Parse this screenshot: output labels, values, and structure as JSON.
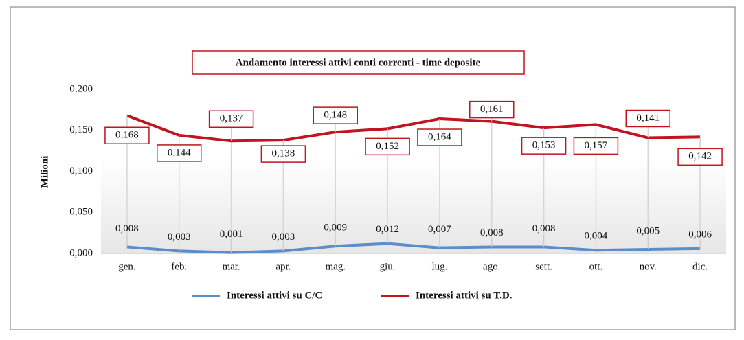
{
  "chart_data": {
    "type": "line",
    "title": "Andamento interessi attivi conti correnti  - time deposite",
    "y_label": "Milioni",
    "categories": [
      "gen.",
      "feb.",
      "mar.",
      "apr.",
      "mag.",
      "giu.",
      "lug.",
      "ago.",
      "sett.",
      "ott.",
      "nov.",
      "dic."
    ],
    "series": [
      {
        "name": "Interessi attivi su C/C",
        "color": "#5b8ec9",
        "values": [
          0.008,
          0.003,
          0.001,
          0.003,
          0.009,
          0.012,
          0.007,
          0.008,
          0.008,
          0.004,
          0.005,
          0.006
        ],
        "value_labels": [
          "0,008",
          "0,003",
          "0,001",
          "0,003",
          "0,009",
          "0,012",
          "0,007",
          "0,008",
          "0,008",
          "0,004",
          "0,005",
          "0,006"
        ]
      },
      {
        "name": "Interessi attivi su T.D.",
        "color": "#c0141e",
        "values": [
          0.168,
          0.144,
          0.137,
          0.138,
          0.148,
          0.152,
          0.164,
          0.161,
          0.153,
          0.157,
          0.141,
          0.142
        ],
        "value_labels": [
          "0,168",
          "0,144",
          "0,137",
          "0,138",
          "0,148",
          "0,152",
          "0,164",
          "0,161",
          "0,153",
          "0,157",
          "0,141",
          "0,142"
        ]
      }
    ],
    "ylim": [
      0,
      0.2
    ],
    "yticks": [
      {
        "value": 0,
        "label": "0,000"
      },
      {
        "value": 0.05,
        "label": "0,050"
      },
      {
        "value": 0.1,
        "label": "0,100"
      },
      {
        "value": 0.15,
        "label": "0,150"
      },
      {
        "value": 0.2,
        "label": "0,200"
      }
    ],
    "legend": "bottom"
  }
}
